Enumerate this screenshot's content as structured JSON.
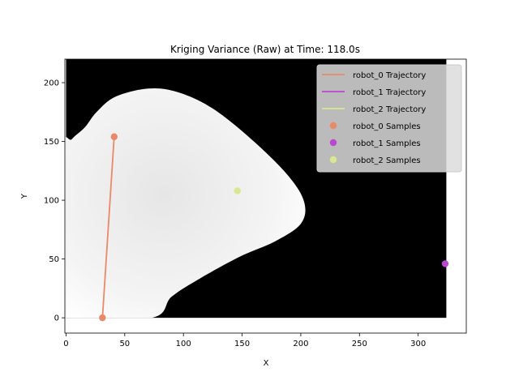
{
  "chart_data": {
    "type": "scatter",
    "title": "Kriging Variance (Raw) at Time: 118.0s",
    "xlabel": "X",
    "ylabel": "Y",
    "xlim": [
      -1,
      341
    ],
    "ylim": [
      -13,
      220
    ],
    "xticks": [
      0,
      50,
      100,
      150,
      200,
      250,
      300
    ],
    "yticks": [
      0,
      50,
      100,
      150,
      200
    ],
    "heatmap": {
      "extent_x": [
        0,
        324
      ],
      "extent_y": [
        0,
        220
      ],
      "background_color": "#000000",
      "covered_color": "#ffffff",
      "covered_region_boundary": [
        [
          -3,
          140
        ],
        [
          5,
          152
        ],
        [
          16,
          162
        ],
        [
          26,
          175
        ],
        [
          42,
          188
        ],
        [
          70,
          195
        ],
        [
          95,
          192
        ],
        [
          125,
          178
        ],
        [
          160,
          150
        ],
        [
          190,
          120
        ],
        [
          203,
          98
        ],
        [
          200,
          80
        ],
        [
          178,
          65
        ],
        [
          148,
          52
        ],
        [
          115,
          34
        ],
        [
          90,
          18
        ],
        [
          73,
          0
        ],
        [
          2,
          0
        ],
        [
          -3,
          8
        ]
      ]
    },
    "series": [
      {
        "name": "robot_0 Trajectory",
        "kind": "line",
        "color": "#e9896a",
        "x": [
          31,
          41
        ],
        "y": [
          0,
          154
        ]
      },
      {
        "name": "robot_1 Trajectory",
        "kind": "line",
        "color": "#b947d1",
        "x": [],
        "y": []
      },
      {
        "name": "robot_2 Trajectory",
        "kind": "line",
        "color": "#d9e88f",
        "x": [],
        "y": []
      },
      {
        "name": "robot_0 Samples",
        "kind": "scatter",
        "color": "#e9896a",
        "x": [
          31,
          41
        ],
        "y": [
          0,
          154
        ]
      },
      {
        "name": "robot_1 Samples",
        "kind": "scatter",
        "color": "#b947d1",
        "x": [
          323
        ],
        "y": [
          46
        ]
      },
      {
        "name": "robot_2 Samples",
        "kind": "scatter",
        "color": "#d9e88f",
        "x": [
          146
        ],
        "y": [
          108
        ]
      }
    ],
    "legend_position": "top-right",
    "grid": false
  }
}
